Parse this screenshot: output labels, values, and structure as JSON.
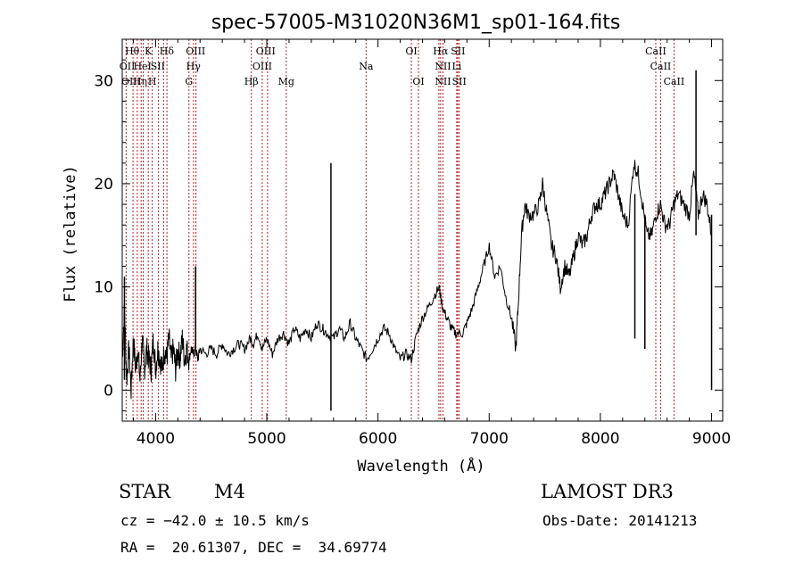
{
  "chart_data": {
    "type": "line",
    "title": "spec-57005-M31020N36M1_sp01-164.fits",
    "xlabel": "Wavelength (Å)",
    "ylabel": "Flux (relative)",
    "xlim": [
      3700,
      9100
    ],
    "ylim": [
      -3,
      34
    ],
    "xticks": [
      4000,
      5000,
      6000,
      7000,
      8000,
      9000
    ],
    "yticks": [
      0,
      10,
      20,
      30
    ],
    "spectrum": [
      [
        3700,
        3
      ],
      [
        3720,
        8
      ],
      [
        3740,
        1
      ],
      [
        3760,
        4
      ],
      [
        3780,
        0
      ],
      [
        3800,
        5
      ],
      [
        3820,
        2
      ],
      [
        3840,
        4
      ],
      [
        3860,
        1
      ],
      [
        3880,
        5
      ],
      [
        3900,
        2
      ],
      [
        3920,
        4
      ],
      [
        3940,
        3
      ],
      [
        3960,
        2
      ],
      [
        3980,
        5
      ],
      [
        4000,
        2
      ],
      [
        4020,
        4
      ],
      [
        4040,
        3
      ],
      [
        4060,
        2
      ],
      [
        4080,
        4
      ],
      [
        4100,
        3
      ],
      [
        4120,
        5
      ],
      [
        4140,
        3
      ],
      [
        4160,
        4
      ],
      [
        4180,
        2
      ],
      [
        4200,
        4
      ],
      [
        4220,
        3
      ],
      [
        4240,
        5
      ],
      [
        4260,
        3
      ],
      [
        4280,
        4
      ],
      [
        4300,
        3
      ],
      [
        4320,
        4
      ],
      [
        4340,
        3.5
      ],
      [
        4360,
        4
      ],
      [
        4380,
        3
      ],
      [
        4400,
        4
      ],
      [
        4450,
        3.5
      ],
      [
        4500,
        4
      ],
      [
        4550,
        3.5
      ],
      [
        4600,
        4.5
      ],
      [
        4650,
        3.5
      ],
      [
        4700,
        4
      ],
      [
        4750,
        4.5
      ],
      [
        4800,
        4
      ],
      [
        4850,
        5
      ],
      [
        4880,
        4.5
      ],
      [
        4920,
        5.5
      ],
      [
        4960,
        4
      ],
      [
        5000,
        5
      ],
      [
        5050,
        3.5
      ],
      [
        5100,
        5
      ],
      [
        5150,
        5.5
      ],
      [
        5200,
        4.5
      ],
      [
        5250,
        6
      ],
      [
        5300,
        5
      ],
      [
        5350,
        6
      ],
      [
        5400,
        5
      ],
      [
        5450,
        6.5
      ],
      [
        5500,
        6
      ],
      [
        5540,
        5.5
      ],
      [
        5600,
        5
      ],
      [
        5650,
        6
      ],
      [
        5700,
        5
      ],
      [
        5750,
        6.5
      ],
      [
        5800,
        5
      ],
      [
        5850,
        4
      ],
      [
        5900,
        3
      ],
      [
        5950,
        4
      ],
      [
        6000,
        5
      ],
      [
        6050,
        6
      ],
      [
        6100,
        5.5
      ],
      [
        6150,
        4
      ],
      [
        6200,
        3
      ],
      [
        6250,
        3.5
      ],
      [
        6300,
        3
      ],
      [
        6350,
        5.5
      ],
      [
        6400,
        7
      ],
      [
        6450,
        8
      ],
      [
        6500,
        9
      ],
      [
        6550,
        10
      ],
      [
        6580,
        8
      ],
      [
        6620,
        7
      ],
      [
        6660,
        6
      ],
      [
        6700,
        5.5
      ],
      [
        6760,
        5.5
      ],
      [
        6800,
        6.5
      ],
      [
        6850,
        8
      ],
      [
        6900,
        10
      ],
      [
        6950,
        12
      ],
      [
        7000,
        14
      ],
      [
        7050,
        11
      ],
      [
        7100,
        12
      ],
      [
        7150,
        9
      ],
      [
        7200,
        7
      ],
      [
        7240,
        4
      ],
      [
        7260,
        8
      ],
      [
        7290,
        15
      ],
      [
        7320,
        18
      ],
      [
        7350,
        17
      ],
      [
        7400,
        17
      ],
      [
        7450,
        18
      ],
      [
        7480,
        20
      ],
      [
        7520,
        17
      ],
      [
        7560,
        14
      ],
      [
        7600,
        13
      ],
      [
        7640,
        10
      ],
      [
        7680,
        12
      ],
      [
        7720,
        11
      ],
      [
        7760,
        13
      ],
      [
        7800,
        15
      ],
      [
        7840,
        14
      ],
      [
        7880,
        15
      ],
      [
        7920,
        17
      ],
      [
        7960,
        18
      ],
      [
        8000,
        18
      ],
      [
        8040,
        19
      ],
      [
        8080,
        20
      ],
      [
        8120,
        21
      ],
      [
        8160,
        19
      ],
      [
        8200,
        17
      ],
      [
        8250,
        16
      ],
      [
        8300,
        22
      ],
      [
        8340,
        21
      ],
      [
        8380,
        18
      ],
      [
        8420,
        15
      ],
      [
        8460,
        15
      ],
      [
        8500,
        17
      ],
      [
        8540,
        18
      ],
      [
        8580,
        16
      ],
      [
        8620,
        16
      ],
      [
        8660,
        18
      ],
      [
        8700,
        19
      ],
      [
        8750,
        18
      ],
      [
        8800,
        17
      ],
      [
        8840,
        21
      ],
      [
        8880,
        17
      ],
      [
        8920,
        19
      ],
      [
        8960,
        18
      ],
      [
        9000,
        15
      ]
    ],
    "spikes": [
      {
        "x": 3720,
        "lo": 1,
        "hi": 11
      },
      {
        "x": 4360,
        "lo": 4,
        "hi": 12
      },
      {
        "x": 5577,
        "lo": -2,
        "hi": 22
      },
      {
        "x": 8310,
        "lo": 5,
        "hi": 19
      },
      {
        "x": 8400,
        "lo": 4,
        "hi": 17
      },
      {
        "x": 8860,
        "lo": 15,
        "hi": 31
      },
      {
        "x": 9000,
        "lo": 0,
        "hi": 17
      }
    ],
    "lines": [
      {
        "x": 3735
      },
      {
        "x": 3797
      },
      {
        "x": 3835
      },
      {
        "x": 3870
      },
      {
        "x": 3889
      },
      {
        "x": 3934
      },
      {
        "x": 3970
      },
      {
        "x": 4026
      },
      {
        "x": 4072
      },
      {
        "x": 4102
      },
      {
        "x": 4300
      },
      {
        "x": 4341
      },
      {
        "x": 4363
      },
      {
        "x": 4861
      },
      {
        "x": 4959
      },
      {
        "x": 5007
      },
      {
        "x": 5175
      },
      {
        "x": 5893
      },
      {
        "x": 6300
      },
      {
        "x": 6364
      },
      {
        "x": 6548
      },
      {
        "x": 6563
      },
      {
        "x": 6584
      },
      {
        "x": 6708
      },
      {
        "x": 6717
      },
      {
        "x": 6731
      },
      {
        "x": 8498
      },
      {
        "x": 8542
      },
      {
        "x": 8662
      }
    ],
    "line_labels": [
      {
        "x": 3790,
        "row": 0,
        "text": "Hθ"
      },
      {
        "x": 3935,
        "row": 0,
        "text": "K"
      },
      {
        "x": 4100,
        "row": 0,
        "text": "Hδ"
      },
      {
        "x": 4360,
        "row": 0,
        "text": "OIII"
      },
      {
        "x": 4990,
        "row": 0,
        "text": "OIII"
      },
      {
        "x": 6300,
        "row": 0,
        "text": "OI"
      },
      {
        "x": 6563,
        "row": 0,
        "text": "Hα"
      },
      {
        "x": 6720,
        "row": 0,
        "text": "SII"
      },
      {
        "x": 8498,
        "row": 0,
        "text": "CaII"
      },
      {
        "x": 3745,
        "row": 1,
        "text": "OII"
      },
      {
        "x": 3882,
        "row": 1,
        "text": "HeI"
      },
      {
        "x": 4020,
        "row": 1,
        "text": "SII"
      },
      {
        "x": 4340,
        "row": 1,
        "text": "Hγ"
      },
      {
        "x": 4959,
        "row": 1,
        "text": "OIII"
      },
      {
        "x": 5893,
        "row": 1,
        "text": "Na"
      },
      {
        "x": 6584,
        "row": 1,
        "text": "NII"
      },
      {
        "x": 6708,
        "row": 1,
        "text": "Li"
      },
      {
        "x": 8542,
        "row": 1,
        "text": "CaII"
      },
      {
        "x": 3780,
        "row": 2,
        "text": "OIII"
      },
      {
        "x": 3860,
        "row": 2,
        "text": "Hη"
      },
      {
        "x": 3970,
        "row": 2,
        "text": "H"
      },
      {
        "x": 4300,
        "row": 2,
        "text": "G"
      },
      {
        "x": 4861,
        "row": 2,
        "text": "Hβ"
      },
      {
        "x": 5175,
        "row": 2,
        "text": "Mg"
      },
      {
        "x": 6364,
        "row": 2,
        "text": "OI"
      },
      {
        "x": 6584,
        "row": 2,
        "text": "NII"
      },
      {
        "x": 6731,
        "row": 2,
        "text": "SII"
      },
      {
        "x": 8662,
        "row": 2,
        "text": "CaII"
      }
    ],
    "line_color": "#b22222",
    "spectrum_color": "#000000"
  },
  "info": {
    "class": "STAR",
    "subclass": "M4",
    "survey": "LAMOST DR3",
    "cz": "cz = −42.0 ± 10.5 km/s",
    "obs_date": "Obs-Date: 20141213",
    "radec": "RA =  20.61307, DEC =  34.69774"
  }
}
